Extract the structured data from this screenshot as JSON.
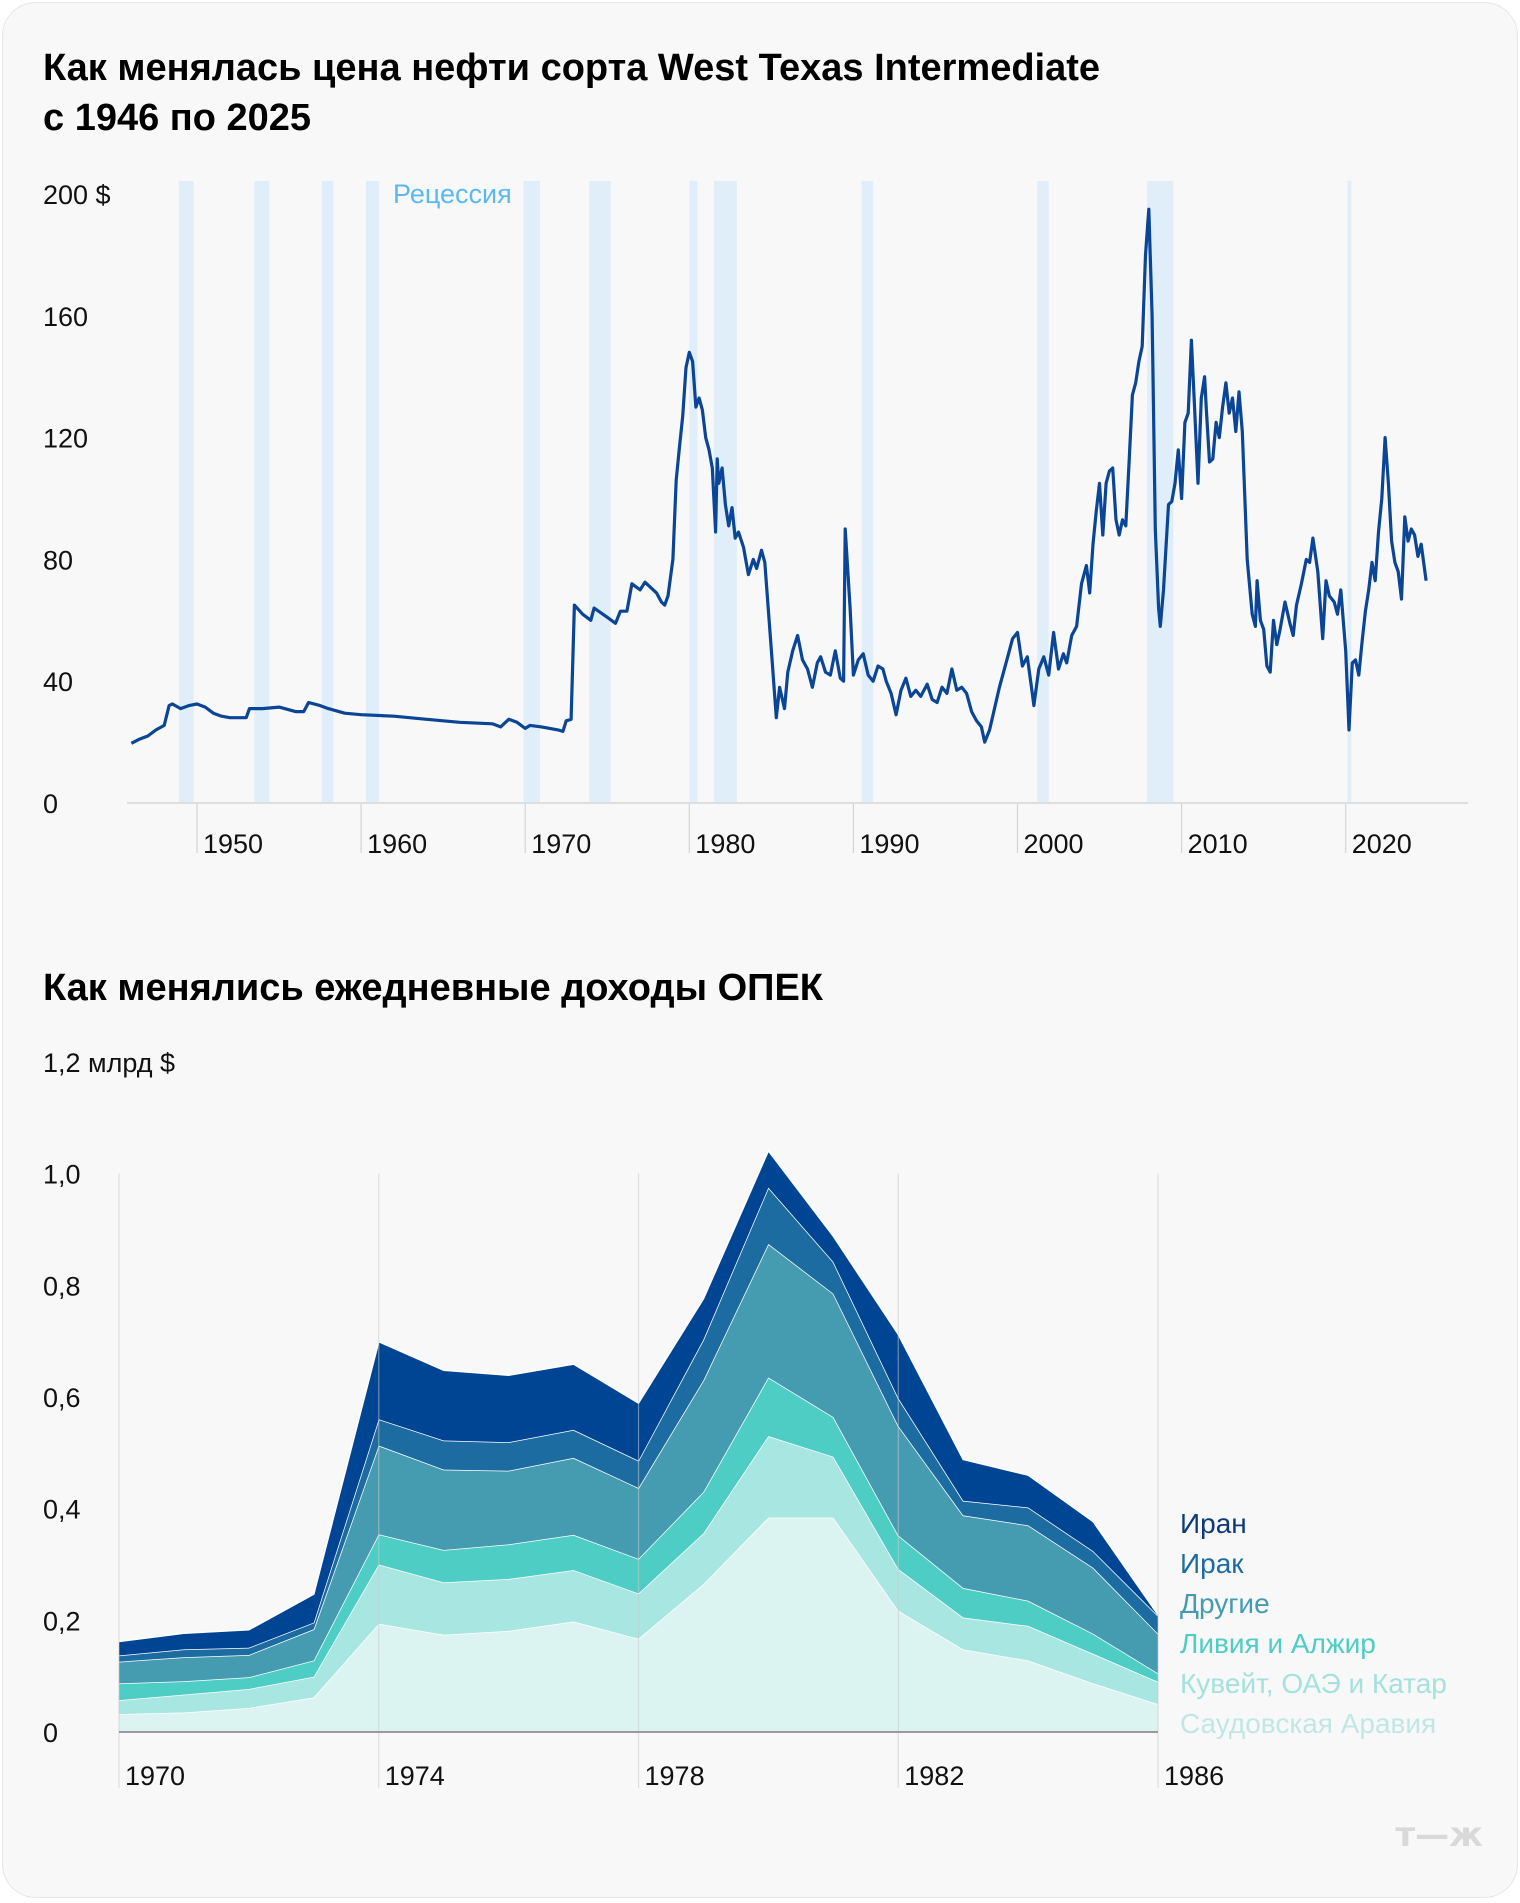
{
  "chart_data": [
    {
      "type": "line",
      "title": "Как менялась цена нефти сорта West Texas Intermediate с 1946 по 2025",
      "title_lines": [
        "Как менялась цена нефти сорта West Texas Intermediate",
        "с 1946 по 2025"
      ],
      "ylim": [
        0,
        200
      ],
      "yticks": [
        "0",
        "40",
        "80",
        "120",
        "160",
        "200 $"
      ],
      "ytick_values": [
        0,
        40,
        80,
        120,
        160,
        200
      ],
      "xticks": [
        "1950",
        "1960",
        "1970",
        "1980",
        "1990",
        "2000",
        "2010",
        "2020"
      ],
      "xtick_values": [
        1950,
        1960,
        1970,
        1980,
        1990,
        2000,
        2010,
        2020
      ],
      "xlim": [
        1946,
        2025
      ],
      "line_color": "#0a4596",
      "recession_label": "Рецессия",
      "recession_color": "#5cb8f5",
      "recession_fill": "#dfeef9",
      "recessions": [
        [
          1948.9,
          1949.8
        ],
        [
          1953.5,
          1954.4
        ],
        [
          1957.6,
          1958.3
        ],
        [
          1960.3,
          1961.1
        ],
        [
          1969.9,
          1970.9
        ],
        [
          1973.9,
          1975.2
        ],
        [
          1980.0,
          1980.5
        ],
        [
          1981.5,
          1982.9
        ],
        [
          1990.5,
          1991.2
        ],
        [
          2001.2,
          2001.9
        ],
        [
          2007.9,
          2009.5
        ],
        [
          2020.1,
          2020.3
        ]
      ],
      "series": [
        {
          "x": [
            1946.0,
            1946.5,
            1947.0,
            1947.5,
            1948.0,
            1948.3,
            1948.5,
            1949,
            1949.5,
            1950,
            1950.5,
            1951,
            1951.5,
            1952,
            1952.5,
            1953,
            1953.2,
            1954,
            1955,
            1956,
            1956.5,
            1956.8,
            1957.5,
            1958,
            1959,
            1960,
            1962,
            1964,
            1966,
            1968,
            1968.5,
            1969,
            1969.5,
            1970,
            1970.3,
            1971,
            1972,
            1972.3,
            1972.5,
            1972.8,
            1973,
            1973.5,
            1974,
            1974.2,
            1975,
            1975.5,
            1975.8,
            1976.2,
            1976.5,
            1977,
            1977.3,
            1978,
            1978.3,
            1978.5,
            1978.7,
            1979,
            1979.2,
            1979.4,
            1979.6,
            1979.8,
            1980,
            1980.2,
            1980.4,
            1980.6,
            1980.8,
            1981,
            1981.2,
            1981.4,
            1981.6,
            1981.7,
            1981.8,
            1982,
            1982.2,
            1982.4,
            1982.6,
            1982.8,
            1983,
            1983.3,
            1983.6,
            1983.9,
            1984.1,
            1984.4,
            1984.6,
            1985,
            1985.3,
            1985.5,
            1985.8,
            1986,
            1986.3,
            1986.6,
            1986.9,
            1987.2,
            1987.5,
            1987.8,
            1988,
            1988.3,
            1988.6,
            1988.9,
            1989.2,
            1989.4,
            1989.5,
            1989.8,
            1990,
            1990.3,
            1990.6,
            1990.9,
            1991.2,
            1991.5,
            1991.8,
            1992,
            1992.3,
            1992.6,
            1992.9,
            1993.2,
            1993.5,
            1993.8,
            1994.1,
            1994.5,
            1994.8,
            1995.1,
            1995.4,
            1995.7,
            1996,
            1996.3,
            1996.6,
            1996.9,
            1997.2,
            1997.5,
            1997.8,
            1998,
            1998.3,
            1998.6,
            1998.9,
            1999.2,
            1999.4,
            1999.7,
            2000,
            2000.3,
            2000.6,
            2000.9,
            2001,
            2001.3,
            2001.6,
            2001.9,
            2002.2,
            2002.5,
            2002.8,
            2003,
            2003.3,
            2003.6,
            2003.9,
            2004.2,
            2004.4,
            2004.6,
            2004.8,
            2005,
            2005.2,
            2005.4,
            2005.6,
            2005.8,
            2006,
            2006.2,
            2006.4,
            2006.6,
            2006.8,
            2007,
            2007.2,
            2007.4,
            2007.6,
            2007.8,
            2008,
            2008.2,
            2008.4,
            2008.6,
            2008.7,
            2008.9,
            2009.2,
            2009.4,
            2009.6,
            2009.8,
            2010,
            2010.2,
            2010.4,
            2010.6,
            2010.8,
            2011,
            2011.2,
            2011.4,
            2011.5,
            2011.7,
            2011.9,
            2012.1,
            2012.3,
            2012.5,
            2012.7,
            2012.9,
            2013.1,
            2013.3,
            2013.5,
            2013.7,
            2014,
            2014.3,
            2014.5,
            2014.6,
            2014.8,
            2015,
            2015.2,
            2015.4,
            2015.6,
            2015.8,
            2016,
            2016.3,
            2016.6,
            2016.8,
            2017,
            2017.3,
            2017.6,
            2017.8,
            2018,
            2018.3,
            2018.6,
            2018.8,
            2019,
            2019.3,
            2019.5,
            2019.7,
            2020,
            2020.2,
            2020.4,
            2020.6,
            2020.8,
            2021,
            2021.2,
            2021.4,
            2021.6,
            2021.8,
            2022,
            2022.2,
            2022.4,
            2022.6,
            2022.8,
            2023,
            2023.2,
            2023.4,
            2023.6,
            2023.8,
            2024,
            2024.2,
            2024.4,
            2024.6,
            2024.9
          ],
          "y": [
            19.6,
            21,
            22,
            24,
            25.5,
            32,
            32.5,
            31,
            32,
            32.5,
            31.5,
            29.5,
            28.5,
            28,
            28,
            28,
            31,
            31,
            31.5,
            30,
            30,
            33,
            32,
            31,
            29.5,
            29,
            28.5,
            27.5,
            26.5,
            26,
            25,
            27.5,
            26.5,
            24.5,
            25.5,
            25,
            24,
            23.5,
            27,
            27.5,
            65,
            62,
            60,
            64,
            61,
            59,
            63,
            63,
            72,
            70,
            72.5,
            69,
            66,
            65,
            68,
            80,
            106,
            117,
            127,
            143,
            148,
            145,
            130,
            133,
            129,
            120,
            116,
            110,
            89,
            113,
            105,
            110,
            98,
            91,
            97,
            87,
            89,
            84,
            75,
            80,
            77,
            83,
            79,
            50,
            28,
            38,
            31,
            43,
            50,
            55,
            47,
            44,
            38,
            46,
            48,
            43,
            42,
            50,
            41,
            40,
            90,
            64,
            42,
            47,
            49,
            42,
            40,
            45,
            44,
            40,
            36,
            29,
            37,
            41,
            35,
            37,
            35,
            39,
            34,
            33,
            38,
            36,
            44,
            37,
            38,
            36,
            30,
            27,
            25,
            20,
            24,
            31,
            38,
            44,
            48,
            54,
            56,
            45,
            48,
            36,
            32,
            44,
            48,
            42,
            56,
            44,
            49,
            46,
            55,
            58,
            72,
            78,
            69,
            85,
            96,
            105,
            88,
            105,
            109,
            110,
            93,
            88,
            93,
            91,
            112,
            134,
            138,
            145,
            150,
            180,
            195,
            160,
            90,
            64,
            58,
            70,
            98,
            99,
            105,
            116,
            100,
            125,
            128,
            152,
            129,
            105,
            133,
            140,
            130,
            112,
            113,
            125,
            120,
            130,
            138,
            128,
            133,
            122,
            135,
            122,
            80,
            62,
            58,
            73,
            60,
            57,
            45,
            43,
            60,
            52,
            57,
            66,
            59,
            55,
            65,
            72,
            80,
            79,
            87,
            76,
            54,
            73,
            68,
            66,
            62,
            70,
            50,
            24,
            46,
            47,
            42,
            53,
            63,
            70,
            79,
            73,
            89,
            100,
            120,
            105,
            86,
            79,
            76,
            67,
            94,
            86,
            90,
            88,
            81,
            85,
            73
          ]
        }
      ]
    },
    {
      "type": "area",
      "stacked": true,
      "title": "Как менялись ежедневные доходы ОПЕК",
      "ylim": [
        0,
        1.2
      ],
      "yticks": [
        "0",
        "0,2",
        "0,4",
        "0,6",
        "0,8",
        "1,0",
        "1,2 млрд $"
      ],
      "ytick_values": [
        0,
        0.2,
        0.4,
        0.6,
        0.8,
        1.0,
        1.2
      ],
      "xticks": [
        "1970",
        "1974",
        "1978",
        "1982",
        "1986"
      ],
      "xtick_values": [
        1970,
        1974,
        1978,
        1982,
        1986
      ],
      "x": [
        1970,
        1971,
        1972,
        1973,
        1974,
        1975,
        1976,
        1977,
        1978,
        1979,
        1980,
        1981,
        1982,
        1983,
        1984,
        1985,
        1986
      ],
      "series": [
        {
          "name": "Саудовская Аравия",
          "color": "#dcf4f1",
          "text_color": "#bfe8e4",
          "values": [
            0.032,
            0.035,
            0.043,
            0.062,
            0.194,
            0.174,
            0.181,
            0.198,
            0.167,
            0.265,
            0.384,
            0.384,
            0.217,
            0.148,
            0.128,
            0.087,
            0.05
          ]
        },
        {
          "name": "Кувейт, ОАЭ и Катар",
          "color": "#a8e6e2",
          "text_color": "#a3e2dd",
          "values": [
            0.025,
            0.032,
            0.034,
            0.037,
            0.106,
            0.094,
            0.093,
            0.092,
            0.081,
            0.091,
            0.146,
            0.109,
            0.075,
            0.057,
            0.062,
            0.053,
            0.04
          ]
        },
        {
          "name": "Ливия и Алжир",
          "color": "#4ecdc4",
          "text_color": "#4ecdc4",
          "values": [
            0.03,
            0.024,
            0.021,
            0.029,
            0.054,
            0.058,
            0.062,
            0.063,
            0.062,
            0.074,
            0.105,
            0.071,
            0.06,
            0.053,
            0.045,
            0.036,
            0.015
          ]
        },
        {
          "name": "Другие",
          "color": "#459cb0",
          "text_color": "#459cb0",
          "values": [
            0.039,
            0.043,
            0.04,
            0.056,
            0.159,
            0.144,
            0.132,
            0.138,
            0.127,
            0.2,
            0.239,
            0.221,
            0.196,
            0.13,
            0.135,
            0.118,
            0.071
          ]
        },
        {
          "name": "Ирак",
          "color": "#1d6ca1",
          "text_color": "#1d6ca1",
          "values": [
            0.011,
            0.014,
            0.013,
            0.012,
            0.047,
            0.052,
            0.051,
            0.05,
            0.049,
            0.073,
            0.101,
            0.057,
            0.05,
            0.026,
            0.032,
            0.03,
            0.032
          ]
        },
        {
          "name": "Иран",
          "color": "#004494",
          "text_color": "#0d3a78",
          "values": [
            0.025,
            0.029,
            0.032,
            0.051,
            0.139,
            0.126,
            0.12,
            0.118,
            0.103,
            0.073,
            0.066,
            0.046,
            0.114,
            0.074,
            0.058,
            0.053,
            0.002
          ]
        }
      ]
    }
  ],
  "brand": {
    "logo": "т—ж",
    "logo_color": "#d9d9d9"
  }
}
